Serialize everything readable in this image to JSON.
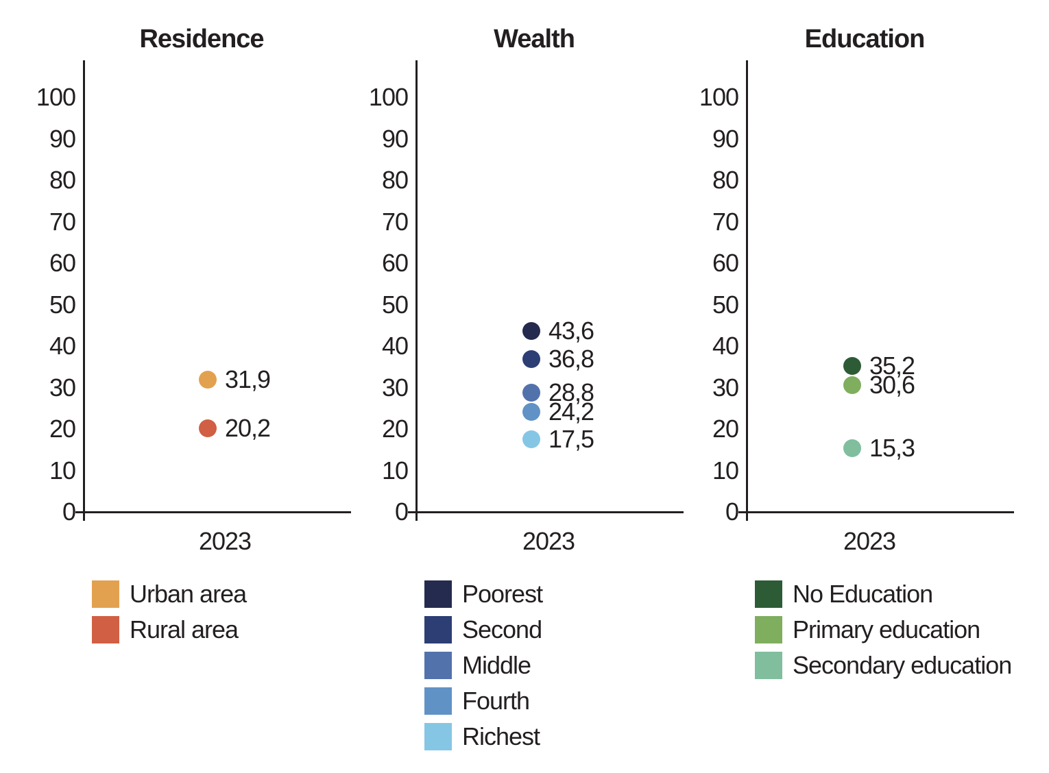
{
  "figure": {
    "background": "#FFFFFF",
    "text_color": "#231F20",
    "axis_color": "#231F20",
    "x_axis_label": "2023"
  },
  "chart_data": [
    {
      "type": "scatter",
      "title": "Residence",
      "x_categories": [
        "2023"
      ],
      "ylim": [
        0,
        100
      ],
      "yticks": [
        0,
        10,
        20,
        30,
        40,
        50,
        60,
        70,
        80,
        90,
        100
      ],
      "grid": false,
      "legend_position": "bottom-left",
      "decimal_separator": ",",
      "series": [
        {
          "name": "Urban area",
          "value": 31.9,
          "display": "31,9",
          "color": "#E2A14F"
        },
        {
          "name": "Rural area",
          "value": 20.2,
          "display": "20,2",
          "color": "#D05F43"
        }
      ]
    },
    {
      "type": "scatter",
      "title": "Wealth",
      "x_categories": [
        "2023"
      ],
      "ylim": [
        0,
        100
      ],
      "yticks": [
        0,
        10,
        20,
        30,
        40,
        50,
        60,
        70,
        80,
        90,
        100
      ],
      "grid": false,
      "legend_position": "bottom-left",
      "decimal_separator": ",",
      "series": [
        {
          "name": "Poorest",
          "value": 43.6,
          "display": "43,6",
          "color": "#252B4E"
        },
        {
          "name": "Second",
          "value": 36.8,
          "display": "36,8",
          "color": "#2C3E74"
        },
        {
          "name": "Middle",
          "value": 28.8,
          "display": "28,8",
          "color": "#5272AC"
        },
        {
          "name": "Fourth",
          "value": 24.2,
          "display": "24,2",
          "color": "#6092C6"
        },
        {
          "name": "Richest",
          "value": 17.5,
          "display": "17,5",
          "color": "#86C6E5"
        }
      ]
    },
    {
      "type": "scatter",
      "title": "Education",
      "x_categories": [
        "2023"
      ],
      "ylim": [
        0,
        100
      ],
      "yticks": [
        0,
        10,
        20,
        30,
        40,
        50,
        60,
        70,
        80,
        90,
        100
      ],
      "grid": false,
      "legend_position": "bottom-left",
      "decimal_separator": ",",
      "series": [
        {
          "name": "No Education",
          "value": 35.2,
          "display": "35,2",
          "color": "#2D5B36"
        },
        {
          "name": "Primary education",
          "value": 30.6,
          "display": "30,6",
          "color": "#7FAE5E"
        },
        {
          "name": "Secondary education",
          "value": 15.3,
          "display": "15,3",
          "color": "#80BE9E"
        }
      ]
    }
  ]
}
